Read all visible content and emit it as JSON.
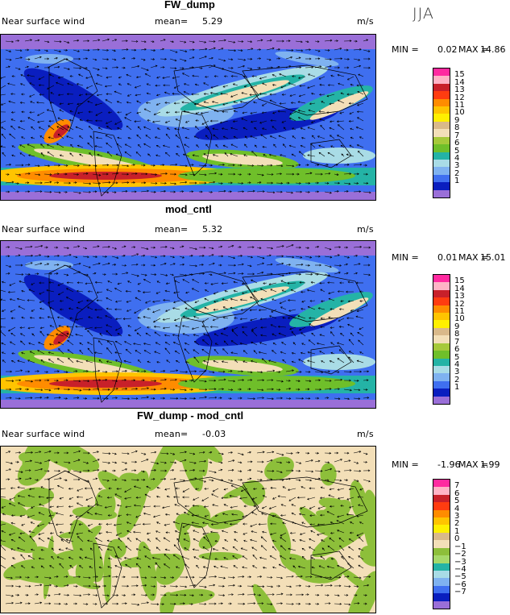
{
  "season": "JJA",
  "panels": [
    {
      "title": "FW_dump",
      "variable": "Near surface wind",
      "mean_label": "mean=",
      "mean": "5.29",
      "units": "m/s",
      "min_label": "MIN =",
      "min": "0.02",
      "max_label": "MAX =",
      "max": "14.86",
      "colorbar_labels": [
        "15",
        "14",
        "13",
        "12",
        "11",
        "10",
        "9",
        "8",
        "7",
        "6",
        "5",
        "4",
        "3",
        "2",
        "1"
      ],
      "colorbar_colors": [
        "#ff2aa0",
        "#ffb3c6",
        "#c8202a",
        "#ff3c10",
        "#ff8c00",
        "#ffc400",
        "#fff000",
        "#d9b98a",
        "#f3dfb8",
        "#a6c93a",
        "#6fbf2a",
        "#24b3a6",
        "#a9dce6",
        "#7fb2f0",
        "#3f6ff0",
        "#0a1ebf",
        "#9a6fd8"
      ]
    },
    {
      "title": "mod_cntl",
      "variable": "Near surface wind",
      "mean_label": "mean=",
      "mean": "5.32",
      "units": "m/s",
      "min_label": "MIN =",
      "min": "0.01",
      "max_label": "MAX =",
      "max": "15.01",
      "colorbar_labels": [
        "15",
        "14",
        "13",
        "12",
        "11",
        "10",
        "9",
        "8",
        "7",
        "6",
        "5",
        "4",
        "3",
        "2",
        "1"
      ],
      "colorbar_colors": [
        "#ff2aa0",
        "#ffb3c6",
        "#c8202a",
        "#ff3c10",
        "#ff8c00",
        "#ffc400",
        "#fff000",
        "#d9b98a",
        "#f3dfb8",
        "#a6c93a",
        "#6fbf2a",
        "#24b3a6",
        "#a9dce6",
        "#7fb2f0",
        "#3f6ff0",
        "#0a1ebf",
        "#9a6fd8"
      ]
    },
    {
      "title": "FW_dump - mod_cntl",
      "variable": "Near surface wind",
      "mean_label": "mean=",
      "mean": "-0.03",
      "units": "m/s",
      "min_label": "MIN =",
      "min": "-1.96",
      "max_label": "MAX =",
      "max": "1.99",
      "colorbar_labels": [
        "7",
        "6",
        "5",
        "4",
        "3",
        "2",
        "1",
        "0",
        "−1",
        "−2",
        "−3",
        "−4",
        "−5",
        "−6",
        "−7"
      ],
      "colorbar_colors": [
        "#ff2aa0",
        "#ffb3c6",
        "#c8202a",
        "#ff3c10",
        "#ff8c00",
        "#ffc400",
        "#fff000",
        "#d9b98a",
        "#f3dfb8",
        "#8dbf3a",
        "#a6d96a",
        "#24b3a6",
        "#a9dce6",
        "#7fb2f0",
        "#3f6ff0",
        "#0a1ebf",
        "#9a6fd8"
      ]
    }
  ],
  "map_palettes": {
    "wind": {
      "base": "#3f6ff0",
      "ocean_calm": "#0a1ebf",
      "polar": "#9a6fd8",
      "light": "#7fb2f0",
      "cyan": "#a9dce6",
      "teal": "#24b3a6",
      "green": "#6fbf2a",
      "tan": "#f3dfb8",
      "orange": "#ff8c00",
      "yellow": "#ffc400",
      "red": "#c8202a"
    },
    "diff": {
      "base": "#f3dfb8",
      "green": "#8dbf3a"
    }
  }
}
